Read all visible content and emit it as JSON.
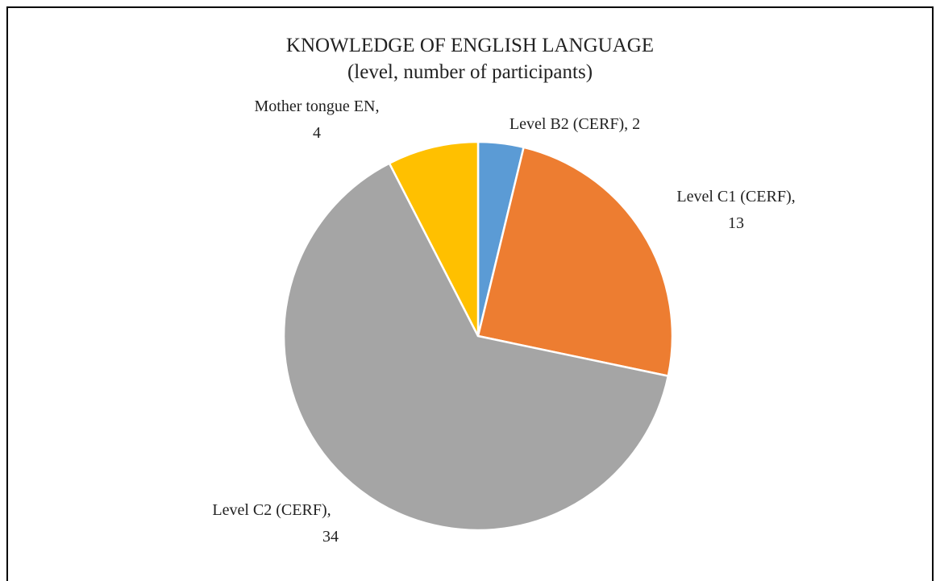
{
  "chart_data": {
    "type": "pie",
    "title": "KNOWLEDGE OF ENGLISH LANGUAGE",
    "subtitle": "(level, number of participants)",
    "categories": [
      "Level B2 (CERF)",
      "Level C1 (CERF)",
      "Level C2 (CERF)",
      "Mother tongue EN"
    ],
    "values": [
      2,
      13,
      34,
      4
    ],
    "colors": [
      "#5b9bd5",
      "#ed7d31",
      "#a5a5a5",
      "#ffc000"
    ],
    "label_separator": ","
  }
}
